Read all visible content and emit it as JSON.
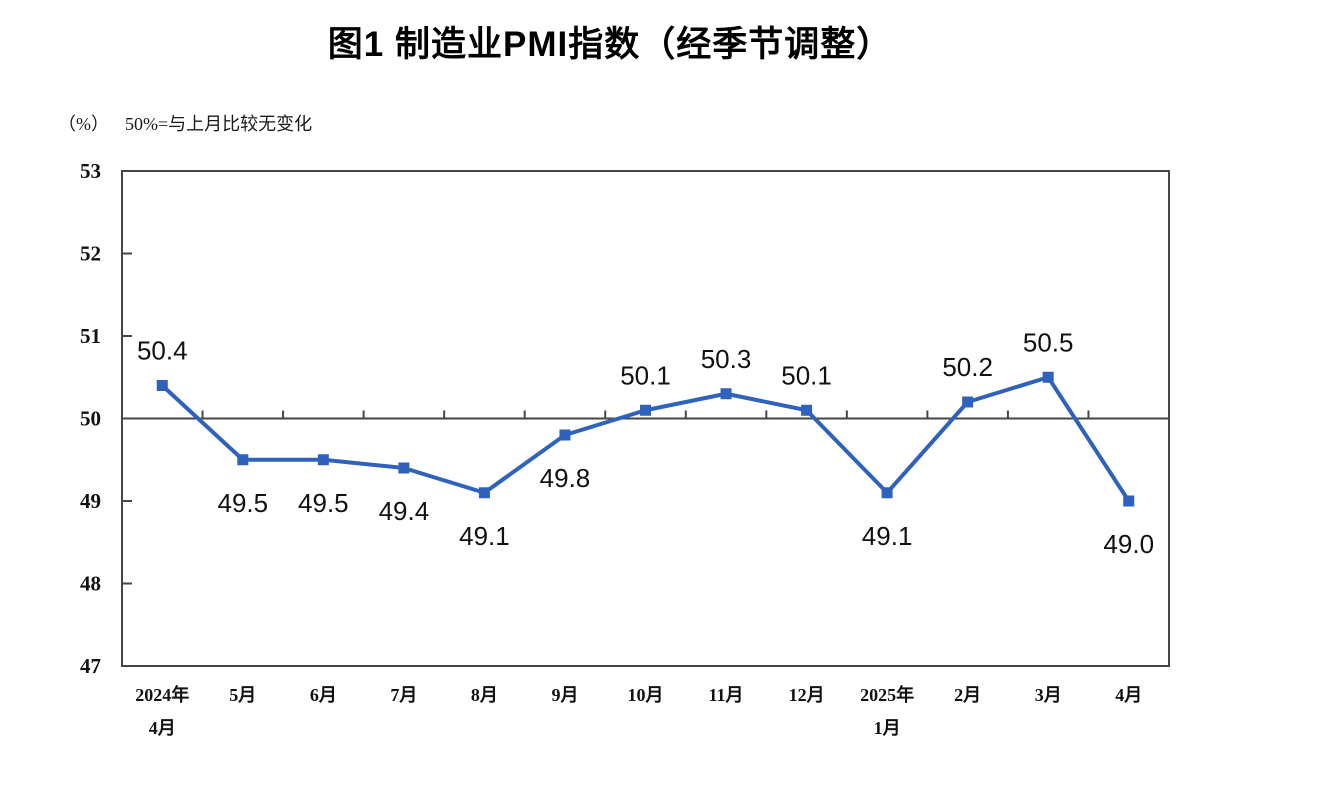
{
  "chart_data": {
    "type": "line",
    "title": "图1  制造业PMI指数（经季节调整）",
    "unit_label": "（%）",
    "subtitle": "50%=与上月比较无变化",
    "x_labels": [
      [
        "2024年",
        "4月"
      ],
      [
        "5月"
      ],
      [
        "6月"
      ],
      [
        "7月"
      ],
      [
        "8月"
      ],
      [
        "9月"
      ],
      [
        "10月"
      ],
      [
        "11月"
      ],
      [
        "12月"
      ],
      [
        "2025年",
        "1月"
      ],
      [
        "2月"
      ],
      [
        "3月"
      ],
      [
        "4月"
      ]
    ],
    "values": [
      50.4,
      49.5,
      49.5,
      49.4,
      49.1,
      49.8,
      50.1,
      50.3,
      50.1,
      49.1,
      50.2,
      50.5,
      49.0
    ],
    "point_labels": [
      "50.4",
      "49.5",
      "49.5",
      "49.4",
      "49.1",
      "49.8",
      "50.1",
      "50.3",
      "50.1",
      "49.1",
      "50.2",
      "50.5",
      "49.0"
    ],
    "ylim": [
      47,
      53
    ],
    "yticks": [
      53,
      52,
      51,
      50,
      49,
      48,
      47
    ],
    "reference_line": 50,
    "grid": false,
    "legend_position": "none",
    "colors": {
      "line": "#2E62BC",
      "axis": "#464646",
      "text": "#111111"
    }
  }
}
